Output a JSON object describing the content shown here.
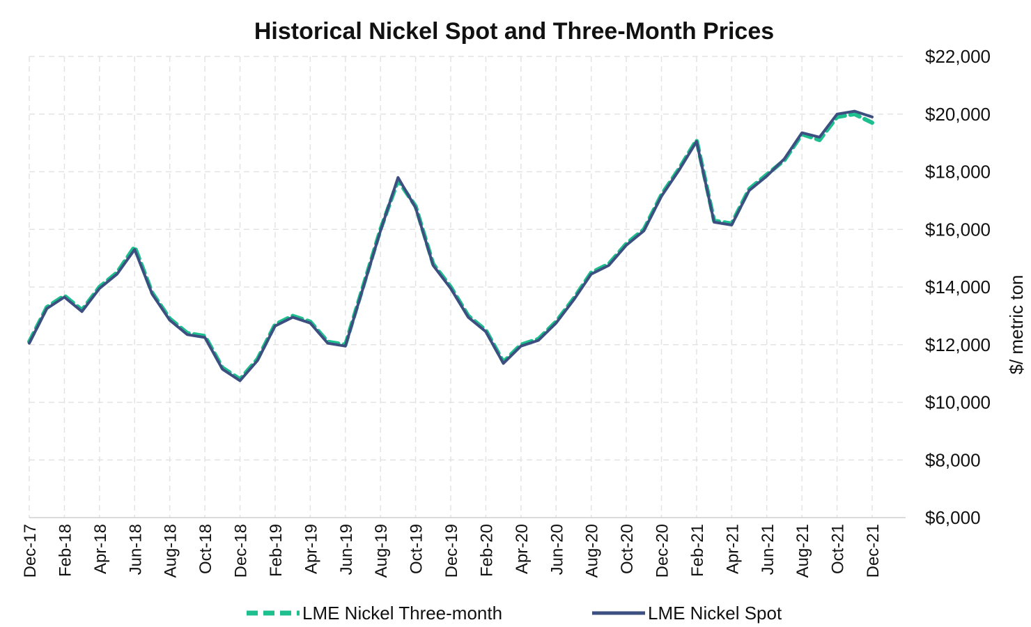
{
  "chart_data": {
    "type": "line",
    "title": "Historical Nickel Spot and Three-Month Prices",
    "xlabel": "",
    "ylabel": "$/ metric ton",
    "ylim": [
      6000,
      22000
    ],
    "yticks": [
      6000,
      8000,
      10000,
      12000,
      14000,
      16000,
      18000,
      20000,
      22000
    ],
    "ytick_labels": [
      "$6,000",
      "$8,000",
      "$10,000",
      "$12,000",
      "$14,000",
      "$16,000",
      "$18,000",
      "$20,000",
      "$22,000"
    ],
    "x_tick_labels": [
      "Dec-17",
      "Feb-18",
      "Apr-18",
      "Jun-18",
      "Aug-18",
      "Oct-18",
      "Dec-18",
      "Feb-19",
      "Apr-19",
      "Jun-19",
      "Aug-19",
      "Oct-19",
      "Dec-19",
      "Feb-20",
      "Apr-20",
      "Jun-20",
      "Aug-20",
      "Oct-20",
      "Dec-20",
      "Feb-21",
      "Apr-21",
      "Jun-21",
      "Aug-21",
      "Oct-21",
      "Dec-21"
    ],
    "grid": true,
    "legend_position": "bottom",
    "series": [
      {
        "name": "LME Nickel Three-month",
        "style": "dashed",
        "color": "#1dbf8e",
        "x": [
          "Dec-17",
          "Jan-18",
          "Feb-18",
          "Mar-18",
          "Apr-18",
          "May-18",
          "Jun-18",
          "Jul-18",
          "Aug-18",
          "Sep-18",
          "Oct-18",
          "Nov-18",
          "Dec-18",
          "Jan-19",
          "Feb-19",
          "Mar-19",
          "Apr-19",
          "May-19",
          "Jun-19",
          "Jul-19",
          "Aug-19",
          "Sep-19",
          "Oct-19",
          "Nov-19",
          "Dec-19",
          "Jan-20",
          "Feb-20",
          "Mar-20",
          "Apr-20",
          "May-20",
          "Jun-20",
          "Jul-20",
          "Aug-20",
          "Sep-20",
          "Oct-20",
          "Nov-20",
          "Dec-20",
          "Jan-21",
          "Feb-21",
          "Mar-21",
          "Apr-21",
          "May-21",
          "Jun-21",
          "Jul-21",
          "Aug-21",
          "Sep-21",
          "Oct-21",
          "Nov-21",
          "Dec-21"
        ],
        "values": [
          12100,
          13300,
          13700,
          13200,
          14000,
          14500,
          15400,
          13800,
          12900,
          12400,
          12300,
          11200,
          10800,
          11500,
          12700,
          13000,
          12800,
          12100,
          12000,
          14000,
          16000,
          17700,
          16800,
          14800,
          14000,
          13000,
          12500,
          11400,
          12000,
          12200,
          12800,
          13600,
          14500,
          14800,
          15500,
          16000,
          17200,
          18100,
          19100,
          16300,
          16200,
          17400,
          17900,
          18400,
          19300,
          19100,
          19900,
          20000,
          19700
        ]
      },
      {
        "name": "LME Nickel Spot",
        "style": "solid",
        "color": "#3c4f80",
        "x": [
          "Dec-17",
          "Jan-18",
          "Feb-18",
          "Mar-18",
          "Apr-18",
          "May-18",
          "Jun-18",
          "Jul-18",
          "Aug-18",
          "Sep-18",
          "Oct-18",
          "Nov-18",
          "Dec-18",
          "Jan-19",
          "Feb-19",
          "Mar-19",
          "Apr-19",
          "May-19",
          "Jun-19",
          "Jul-19",
          "Aug-19",
          "Sep-19",
          "Oct-19",
          "Nov-19",
          "Dec-19",
          "Jan-20",
          "Feb-20",
          "Mar-20",
          "Apr-20",
          "May-20",
          "Jun-20",
          "Jul-20",
          "Aug-20",
          "Sep-20",
          "Oct-20",
          "Nov-20",
          "Dec-20",
          "Jan-21",
          "Feb-21",
          "Mar-21",
          "Apr-21",
          "May-21",
          "Jun-21",
          "Jul-21",
          "Aug-21",
          "Sep-21",
          "Oct-21",
          "Nov-21",
          "Dec-21"
        ],
        "values": [
          12050,
          13250,
          13650,
          13150,
          13950,
          14450,
          15300,
          13750,
          12850,
          12350,
          12250,
          11150,
          10750,
          11450,
          12650,
          12950,
          12750,
          12050,
          11950,
          13950,
          15950,
          17800,
          16750,
          14750,
          13950,
          12950,
          12450,
          11350,
          11950,
          12150,
          12750,
          13550,
          14450,
          14750,
          15450,
          15950,
          17150,
          18050,
          19050,
          16250,
          16150,
          17350,
          17850,
          18450,
          19350,
          19200,
          20000,
          20100,
          19900
        ]
      }
    ]
  }
}
